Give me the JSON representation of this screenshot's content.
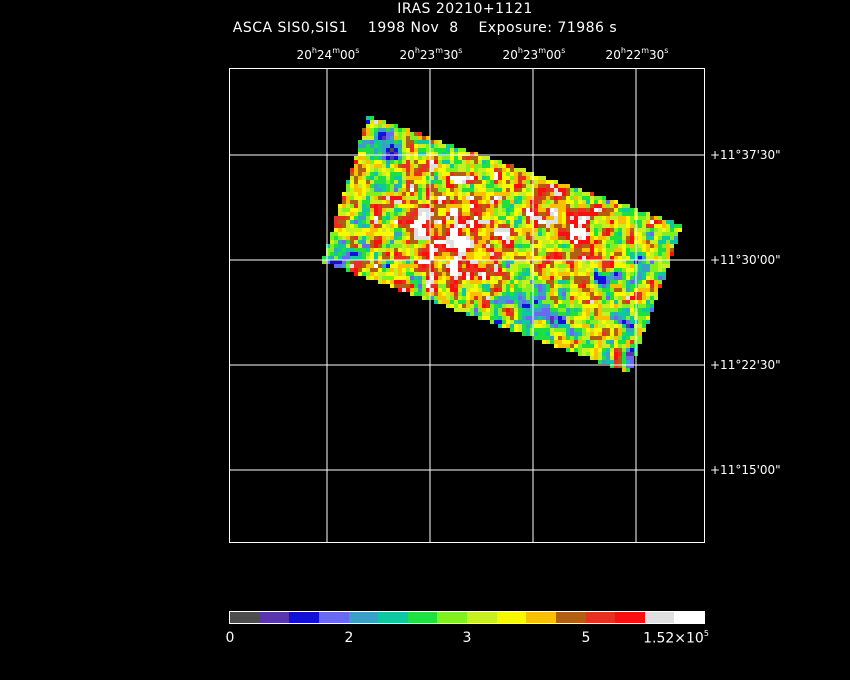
{
  "header": {
    "target": "IRAS 20210+1121",
    "instrument": "ASCA SIS0,SIS1",
    "date": "1998 Nov  8",
    "exposure": "Exposure: 71986 s"
  },
  "axes": {
    "ra_ticks": [
      {
        "h": "20",
        "m": "24",
        "s": "00"
      },
      {
        "h": "20",
        "m": "23",
        "s": "30"
      },
      {
        "h": "20",
        "m": "23",
        "s": "00"
      },
      {
        "h": "20",
        "m": "22",
        "s": "30"
      }
    ],
    "dec_ticks": [
      "+11°37'30\"",
      "+11°30'00\"",
      "+11°22'30\"",
      "+11°15'00\""
    ]
  },
  "colorbar": {
    "colors": [
      "#4d4d4d",
      "#5a35b0",
      "#1010d8",
      "#6a6af0",
      "#3aa0c8",
      "#10c8a0",
      "#20e040",
      "#80f020",
      "#c8f020",
      "#f8f800",
      "#f8c000",
      "#b06010",
      "#e83020",
      "#f81010",
      "#e0e0e0",
      "#ffffff"
    ],
    "labels": [
      "0",
      "2",
      "3",
      "5"
    ],
    "max_label_base": "1.52×10",
    "max_label_exp": "5"
  }
}
